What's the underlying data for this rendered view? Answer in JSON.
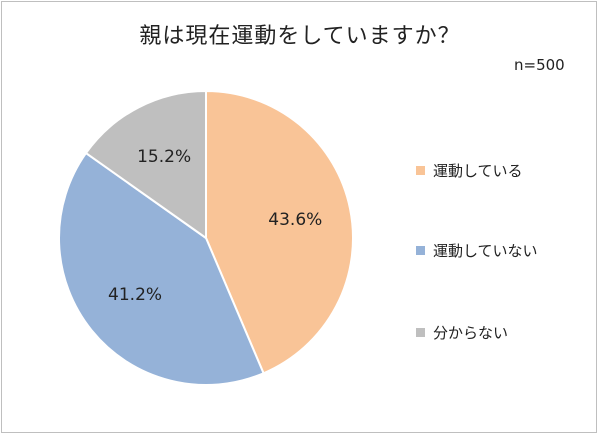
{
  "chart_data": {
    "type": "pie",
    "title": "親は現在運動をしていますか？",
    "note": "n=500",
    "slices": [
      {
        "label": "運動している",
        "value": 43.6,
        "value_label": "43.6%",
        "color": "#f9c497"
      },
      {
        "label": "運動していない",
        "value": 41.2,
        "value_label": "41.2%",
        "color": "#95b2d8"
      },
      {
        "label": "分からない",
        "value": 15.2,
        "value_label": "15.2%",
        "color": "#bfbfbf"
      }
    ],
    "start": "12 o'clock",
    "direction": "clockwise",
    "legend_position": "right"
  }
}
